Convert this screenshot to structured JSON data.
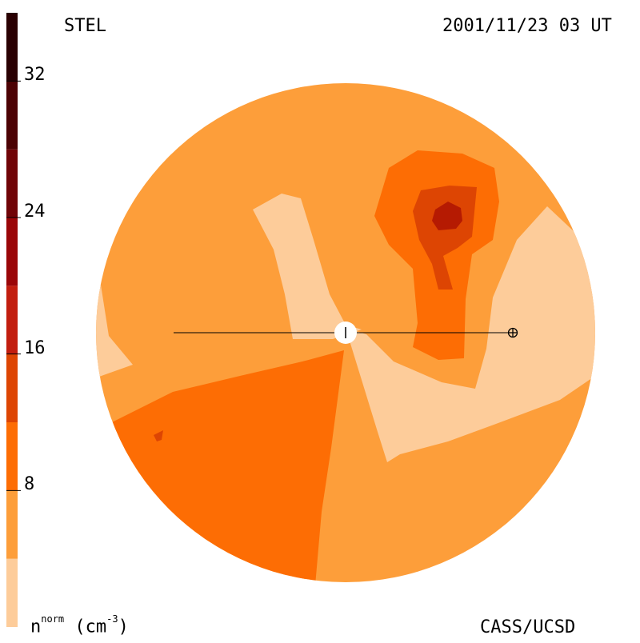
{
  "header": {
    "station": "STEL",
    "datetime": "2001/11/23 03 UT"
  },
  "footer": {
    "credit": "CASS/UCSD",
    "unit_base": "n",
    "unit_sup": "norm",
    "unit_paren": "(cm",
    "unit_exp": "-3",
    "unit_close": ")"
  },
  "colorbar": {
    "range": [
      0,
      36
    ],
    "ticks": [
      "8",
      "16",
      "24",
      "32"
    ],
    "tick_values": [
      8,
      16,
      24,
      32
    ],
    "bands": [
      {
        "from": 0,
        "to": 4,
        "color": "#fdcc9a"
      },
      {
        "from": 4,
        "to": 8,
        "color": "#fd9e3a"
      },
      {
        "from": 8,
        "to": 12,
        "color": "#fd6d04"
      },
      {
        "from": 12,
        "to": 16,
        "color": "#dd4503"
      },
      {
        "from": 16,
        "to": 20,
        "color": "#c21e0f"
      },
      {
        "from": 20,
        "to": 24,
        "color": "#9a0608"
      },
      {
        "from": 24,
        "to": 28,
        "color": "#700407"
      },
      {
        "from": 28,
        "to": 32,
        "color": "#4c0204"
      },
      {
        "from": 32,
        "to": 36,
        "color": "#2a0002"
      }
    ]
  },
  "map": {
    "background_color": "#fd9e3a",
    "contour_colors": [
      "#fdcc9a",
      "#fd6d04",
      "#dd4503",
      "#b51a02"
    ],
    "earth_symbol": "earth-icon"
  }
}
